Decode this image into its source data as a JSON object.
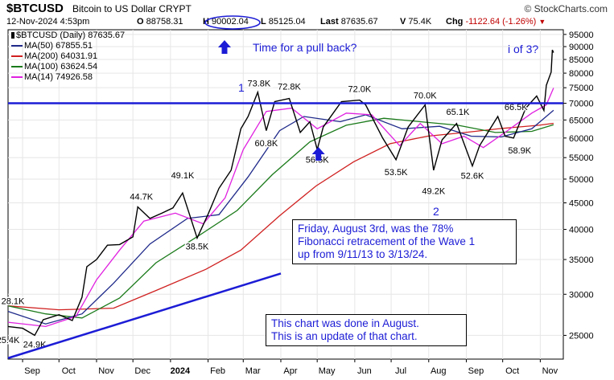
{
  "header": {
    "symbol": "$BTCUSD",
    "name": "Bitcoin to US Dollar CRYPT",
    "brand": "© StockCharts.com",
    "date": "12-Nov-2024 4:53pm",
    "open_label": "O",
    "open": "88758.31",
    "high_label": "H",
    "high": "90002.04",
    "low_label": "L",
    "low": "85125.04",
    "last_label": "Last",
    "last": "87635.67",
    "volume_label": "V",
    "volume": "75.4K",
    "chg_label": "Chg",
    "chg": "-1122.64 (-1.26%)"
  },
  "legend": [
    {
      "label": "$BTCUSD (Daily) 87635.67",
      "color": "#000000"
    },
    {
      "label": "MA(50) 67855.51",
      "color": "#1f2a8a"
    },
    {
      "label": "MA(200) 64031.91",
      "color": "#d02020"
    },
    {
      "label": "MA(100) 63624.54",
      "color": "#1a7a1a"
    },
    {
      "label": "MA(14) 74926.58",
      "color": "#e020e0"
    }
  ],
  "annotations": {
    "pullback": "Time for a pull back?",
    "wave3": "i of 3?",
    "wave1_label": "1",
    "wave2_label": "2",
    "fib_note": "Friday, August 3rd, was the 78%\nFibonacci retracement of the Wave 1\nup from 9/11/13 to 3/13/24.",
    "update_note": "This chart was done in August.\nThis is an update of that chart."
  },
  "colors": {
    "price": "#000000",
    "ma50": "#1f2a8a",
    "ma200": "#d02020",
    "ma100": "#1a7a1a",
    "ma14": "#e020e0",
    "annotation_blue": "#1c1cd6",
    "resistance": "#1c1cd6"
  },
  "chart_data": {
    "type": "line",
    "y_scale": "log",
    "ylim": [
      22500,
      97000
    ],
    "yticks": [
      25000,
      30000,
      35000,
      40000,
      45000,
      50000,
      55000,
      60000,
      65000,
      70000,
      75000,
      80000,
      85000,
      90000,
      95000
    ],
    "ytick_labels": [
      "25000",
      "30000",
      "35000",
      "40000",
      "45000",
      "50000",
      "55000",
      "60000",
      "65000",
      "70000",
      "75000",
      "80000",
      "85000",
      "90000",
      "95000"
    ],
    "x_ticks": [
      {
        "label": "Sep",
        "date": "2023-09-01"
      },
      {
        "label": "Oct",
        "date": "2023-10-01"
      },
      {
        "label": "Nov",
        "date": "2023-11-01"
      },
      {
        "label": "Dec",
        "date": "2023-12-01"
      },
      {
        "label": "2024",
        "date": "2024-01-01",
        "bold": true
      },
      {
        "label": "Feb",
        "date": "2024-02-01"
      },
      {
        "label": "Mar",
        "date": "2024-03-01"
      },
      {
        "label": "Apr",
        "date": "2024-04-01"
      },
      {
        "label": "May",
        "date": "2024-05-01"
      },
      {
        "label": "Jun",
        "date": "2024-06-01"
      },
      {
        "label": "Jul",
        "date": "2024-07-01"
      },
      {
        "label": "Aug",
        "date": "2024-08-01"
      },
      {
        "label": "Sep",
        "date": "2024-09-01"
      },
      {
        "label": "Oct",
        "date": "2024-10-01"
      },
      {
        "label": "Nov",
        "date": "2024-11-01"
      }
    ],
    "x_start": "2023-08-20",
    "x_end": "2024-11-20",
    "price": [
      [
        "2023-08-20",
        26000
      ],
      [
        "2023-09-01",
        25800
      ],
      [
        "2023-09-11",
        25000
      ],
      [
        "2023-09-18",
        26800
      ],
      [
        "2023-10-01",
        27400
      ],
      [
        "2023-10-12",
        26700
      ],
      [
        "2023-10-20",
        29600
      ],
      [
        "2023-10-24",
        33900
      ],
      [
        "2023-11-01",
        35000
      ],
      [
        "2023-11-10",
        37300
      ],
      [
        "2023-11-20",
        37400
      ],
      [
        "2023-12-01",
        38700
      ],
      [
        "2023-12-05",
        44200
      ],
      [
        "2023-12-15",
        42000
      ],
      [
        "2023-12-25",
        43000
      ],
      [
        "2024-01-03",
        44000
      ],
      [
        "2024-01-11",
        47000
      ],
      [
        "2024-01-23",
        38500
      ],
      [
        "2024-02-01",
        42800
      ],
      [
        "2024-02-10",
        48000
      ],
      [
        "2024-02-20",
        52000
      ],
      [
        "2024-02-28",
        62500
      ],
      [
        "2024-03-05",
        66000
      ],
      [
        "2024-03-13",
        73500
      ],
      [
        "2024-03-20",
        62000
      ],
      [
        "2024-03-27",
        70500
      ],
      [
        "2024-04-08",
        71500
      ],
      [
        "2024-04-17",
        61500
      ],
      [
        "2024-04-25",
        64500
      ],
      [
        "2024-05-01",
        57000
      ],
      [
        "2024-05-06",
        63000
      ],
      [
        "2024-05-21",
        70500
      ],
      [
        "2024-06-05",
        71000
      ],
      [
        "2024-06-10",
        69500
      ],
      [
        "2024-06-24",
        60000
      ],
      [
        "2024-07-05",
        54500
      ],
      [
        "2024-07-15",
        63000
      ],
      [
        "2024-07-29",
        69500
      ],
      [
        "2024-08-05",
        52000
      ],
      [
        "2024-08-12",
        59500
      ],
      [
        "2024-08-24",
        64000
      ],
      [
        "2024-09-06",
        53000
      ],
      [
        "2024-09-12",
        58000
      ],
      [
        "2024-09-27",
        66000
      ],
      [
        "2024-10-03",
        60500
      ],
      [
        "2024-10-10",
        60000
      ],
      [
        "2024-10-20",
        68500
      ],
      [
        "2024-10-29",
        72300
      ],
      [
        "2024-11-04",
        67800
      ],
      [
        "2024-11-06",
        75800
      ],
      [
        "2024-11-10",
        80400
      ],
      [
        "2024-11-11",
        88700
      ],
      [
        "2024-11-12",
        87635
      ]
    ],
    "ma14": [
      [
        "2023-08-20",
        26500
      ],
      [
        "2023-09-20",
        26000
      ],
      [
        "2023-10-15",
        27200
      ],
      [
        "2023-11-01",
        32000
      ],
      [
        "2023-11-20",
        36500
      ],
      [
        "2023-12-10",
        41500
      ],
      [
        "2024-01-05",
        43000
      ],
      [
        "2024-01-28",
        41000
      ],
      [
        "2024-02-15",
        46000
      ],
      [
        "2024-03-01",
        57000
      ],
      [
        "2024-03-20",
        67500
      ],
      [
        "2024-04-10",
        68500
      ],
      [
        "2024-05-01",
        62500
      ],
      [
        "2024-05-25",
        67000
      ],
      [
        "2024-06-15",
        66500
      ],
      [
        "2024-07-08",
        58000
      ],
      [
        "2024-07-25",
        64000
      ],
      [
        "2024-08-12",
        58500
      ],
      [
        "2024-08-30",
        60500
      ],
      [
        "2024-09-15",
        57500
      ],
      [
        "2024-10-05",
        62000
      ],
      [
        "2024-10-25",
        67000
      ],
      [
        "2024-11-06",
        69500
      ],
      [
        "2024-11-12",
        74926
      ]
    ],
    "ma50": [
      [
        "2023-08-20",
        27800
      ],
      [
        "2023-09-20",
        26300
      ],
      [
        "2023-10-20",
        27500
      ],
      [
        "2023-11-15",
        31500
      ],
      [
        "2023-12-15",
        37500
      ],
      [
        "2024-01-15",
        42000
      ],
      [
        "2024-02-10",
        42700
      ],
      [
        "2024-03-05",
        50500
      ],
      [
        "2024-03-31",
        62000
      ],
      [
        "2024-04-20",
        66000
      ],
      [
        "2024-05-20",
        64500
      ],
      [
        "2024-06-10",
        66500
      ],
      [
        "2024-07-10",
        62500
      ],
      [
        "2024-08-10",
        63200
      ],
      [
        "2024-09-05",
        60500
      ],
      [
        "2024-09-30",
        60300
      ],
      [
        "2024-10-25",
        62500
      ],
      [
        "2024-11-12",
        67855
      ]
    ],
    "ma100": [
      [
        "2023-08-20",
        28500
      ],
      [
        "2023-09-20",
        27500
      ],
      [
        "2023-10-20",
        27000
      ],
      [
        "2023-11-20",
        29500
      ],
      [
        "2023-12-20",
        34500
      ],
      [
        "2024-01-25",
        39000
      ],
      [
        "2024-02-25",
        43500
      ],
      [
        "2024-03-25",
        51000
      ],
      [
        "2024-04-25",
        59000
      ],
      [
        "2024-05-25",
        63500
      ],
      [
        "2024-06-25",
        65500
      ],
      [
        "2024-07-25",
        64500
      ],
      [
        "2024-08-25",
        63500
      ],
      [
        "2024-09-25",
        61500
      ],
      [
        "2024-10-25",
        61800
      ],
      [
        "2024-11-12",
        63624
      ]
    ],
    "ma200": [
      [
        "2023-08-20",
        28500
      ],
      [
        "2023-10-01",
        28000
      ],
      [
        "2023-11-15",
        28200
      ],
      [
        "2023-12-20",
        30500
      ],
      [
        "2024-01-30",
        33500
      ],
      [
        "2024-02-28",
        36500
      ],
      [
        "2024-03-31",
        42500
      ],
      [
        "2024-04-30",
        48500
      ],
      [
        "2024-05-31",
        54000
      ],
      [
        "2024-06-30",
        58500
      ],
      [
        "2024-07-31",
        60500
      ],
      [
        "2024-08-31",
        61500
      ],
      [
        "2024-09-30",
        62600
      ],
      [
        "2024-10-31",
        63500
      ],
      [
        "2024-11-12",
        64031
      ]
    ],
    "resistance_level": 70000,
    "trendline": [
      [
        "2023-08-20",
        22600
      ],
      [
        "2024-04-01",
        32900
      ]
    ],
    "price_labels": [
      {
        "text": "25.4K",
        "date": "2023-08-20",
        "value": 25400,
        "pos": "below"
      },
      {
        "text": "28.1K",
        "date": "2023-08-24",
        "value": 28100,
        "pos": "above"
      },
      {
        "text": "24.9K",
        "date": "2023-09-11",
        "value": 24900,
        "pos": "below"
      },
      {
        "text": "44.7K",
        "date": "2023-12-08",
        "value": 44700,
        "pos": "above"
      },
      {
        "text": "49.1K",
        "date": "2024-01-11",
        "value": 49100,
        "pos": "above"
      },
      {
        "text": "38.5K",
        "date": "2024-01-23",
        "value": 38500,
        "pos": "below"
      },
      {
        "text": "73.8K",
        "date": "2024-03-14",
        "value": 73800,
        "pos": "above"
      },
      {
        "text": "60.8K",
        "date": "2024-03-20",
        "value": 60800,
        "pos": "below"
      },
      {
        "text": "72.8K",
        "date": "2024-04-08",
        "value": 72800,
        "pos": "above"
      },
      {
        "text": "56.5K",
        "date": "2024-05-01",
        "value": 56500,
        "pos": "below"
      },
      {
        "text": "72.0K",
        "date": "2024-06-05",
        "value": 72000,
        "pos": "above"
      },
      {
        "text": "53.5K",
        "date": "2024-07-05",
        "value": 53500,
        "pos": "below"
      },
      {
        "text": "70.0K",
        "date": "2024-07-29",
        "value": 70000,
        "pos": "above"
      },
      {
        "text": "49.2K",
        "date": "2024-08-05",
        "value": 49200,
        "pos": "below"
      },
      {
        "text": "65.1K",
        "date": "2024-08-25",
        "value": 65100,
        "pos": "above"
      },
      {
        "text": "52.6K",
        "date": "2024-09-06",
        "value": 52600,
        "pos": "below"
      },
      {
        "text": "66.5K",
        "date": "2024-10-12",
        "value": 66500,
        "pos": "above"
      },
      {
        "text": "58.9K",
        "date": "2024-10-15",
        "value": 58900,
        "pos": "below"
      }
    ]
  }
}
